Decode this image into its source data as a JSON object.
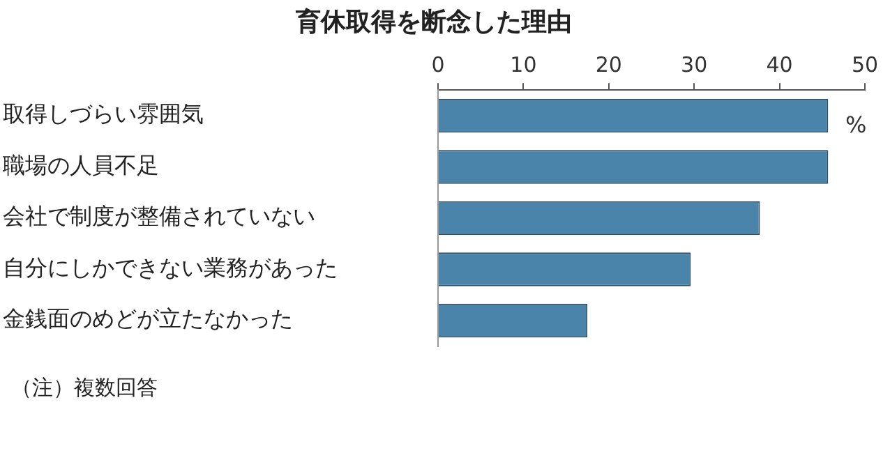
{
  "chart_data": {
    "type": "bar",
    "orientation": "horizontal",
    "title": "育休取得を断念した理由",
    "xlabel": "%",
    "categories": [
      "取得しづらい雰囲気",
      "職場の人員不足",
      "会社で制度が整備されていない",
      "自分にしかできない業務があった",
      "金銭面のめどが立たなかった"
    ],
    "values": [
      45.7,
      45.7,
      37.7,
      29.6,
      17.5
    ],
    "color": "#4a84aa",
    "xlim": [
      0,
      50
    ],
    "xticks": [
      0,
      10,
      20,
      30,
      40,
      50
    ],
    "grid": false,
    "legend": false,
    "annotations": [
      "（注）複数回答"
    ]
  }
}
